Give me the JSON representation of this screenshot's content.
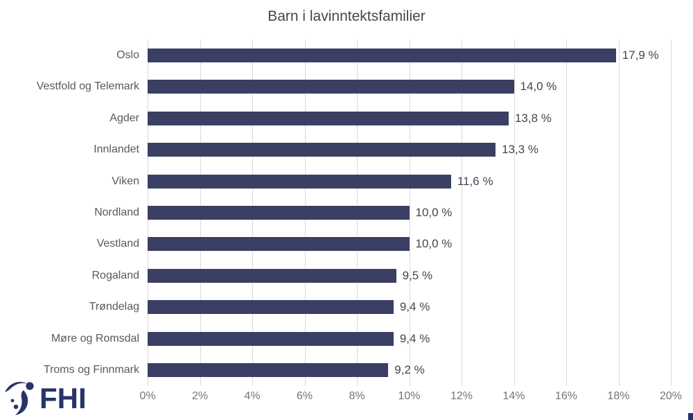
{
  "chart_data": {
    "type": "bar",
    "orientation": "horizontal",
    "title": "Barn i lavinntektsfamilier",
    "categories": [
      "Oslo",
      "Vestfold og Telemark",
      "Agder",
      "Innlandet",
      "Viken",
      "Nordland",
      "Vestland",
      "Rogaland",
      "Trøndelag",
      "Møre og Romsdal",
      "Troms og Finnmark"
    ],
    "values": [
      17.9,
      14.0,
      13.8,
      13.3,
      11.6,
      10.0,
      10.0,
      9.5,
      9.4,
      9.4,
      9.2
    ],
    "value_labels": [
      "17,9 %",
      "14,0 %",
      "13,8 %",
      "13,3 %",
      "11,6 %",
      "10,0 %",
      "10,0 %",
      "9,5 %",
      "9,4 %",
      "9,4 %",
      "9,2 %"
    ],
    "xlabel": "",
    "ylabel": "",
    "xlim": [
      0,
      20
    ],
    "x_ticks": [
      "0%",
      "2%",
      "4%",
      "6%",
      "8%",
      "10%",
      "12%",
      "14%",
      "16%",
      "18%",
      "20%"
    ],
    "grid": "vertical-only",
    "legend": "none",
    "colors": {
      "bar": "#3a3f63",
      "gridline": "#d9d9d9",
      "title_text": "#44474f",
      "category_text": "#595959",
      "tick_text": "#757575",
      "value_text": "#414651"
    }
  },
  "branding": {
    "logo_text": "FHI",
    "logo_color": "#283367"
  }
}
